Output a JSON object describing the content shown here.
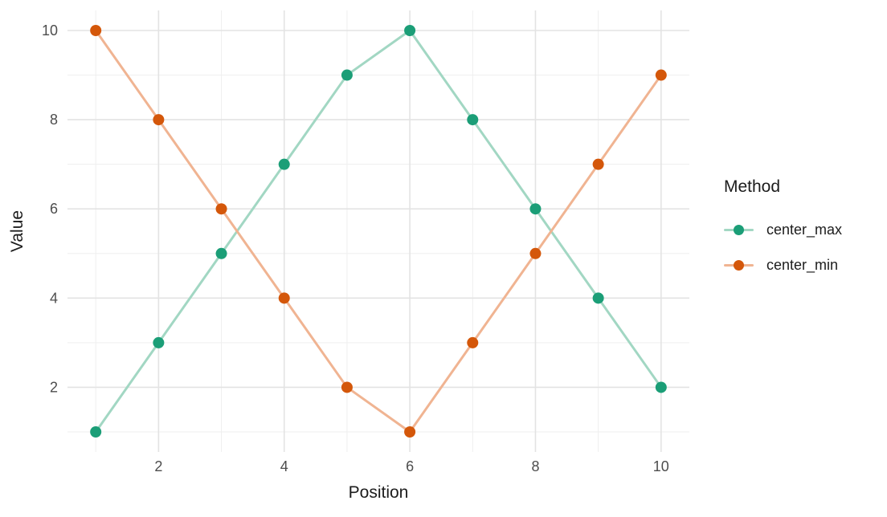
{
  "chart_data": {
    "type": "line",
    "xlabel": "Position",
    "ylabel": "Value",
    "legend_title": "Method",
    "legend_position": "right",
    "grid": true,
    "x": [
      1,
      2,
      3,
      4,
      5,
      6,
      7,
      8,
      9,
      10
    ],
    "series": [
      {
        "name": "center_max",
        "values": [
          1,
          3,
          5,
          7,
          9,
          10,
          8,
          6,
          4,
          2
        ],
        "point_color": "#1b9e77",
        "line_color": "#a2d7c3"
      },
      {
        "name": "center_min",
        "values": [
          10,
          8,
          6,
          4,
          2,
          1,
          3,
          5,
          7,
          9
        ],
        "point_color": "#d4570a",
        "line_color": "#f0b492"
      }
    ],
    "x_ticks": [
      2,
      4,
      6,
      8,
      10
    ],
    "y_ticks": [
      2,
      4,
      6,
      8,
      10
    ],
    "x_minor_gridlines": [
      1,
      3,
      5,
      7,
      9
    ],
    "y_minor_gridlines": [
      1,
      3,
      5,
      7,
      9
    ],
    "xlim": [
      0.55,
      10.45
    ],
    "ylim": [
      0.55,
      10.45
    ]
  },
  "colors": {
    "background": "#ffffff",
    "grid_major": "#e3e3e3",
    "grid_minor": "#efefef",
    "tick_label": "#4d4d4d",
    "axis_title": "#1c1c1c"
  }
}
